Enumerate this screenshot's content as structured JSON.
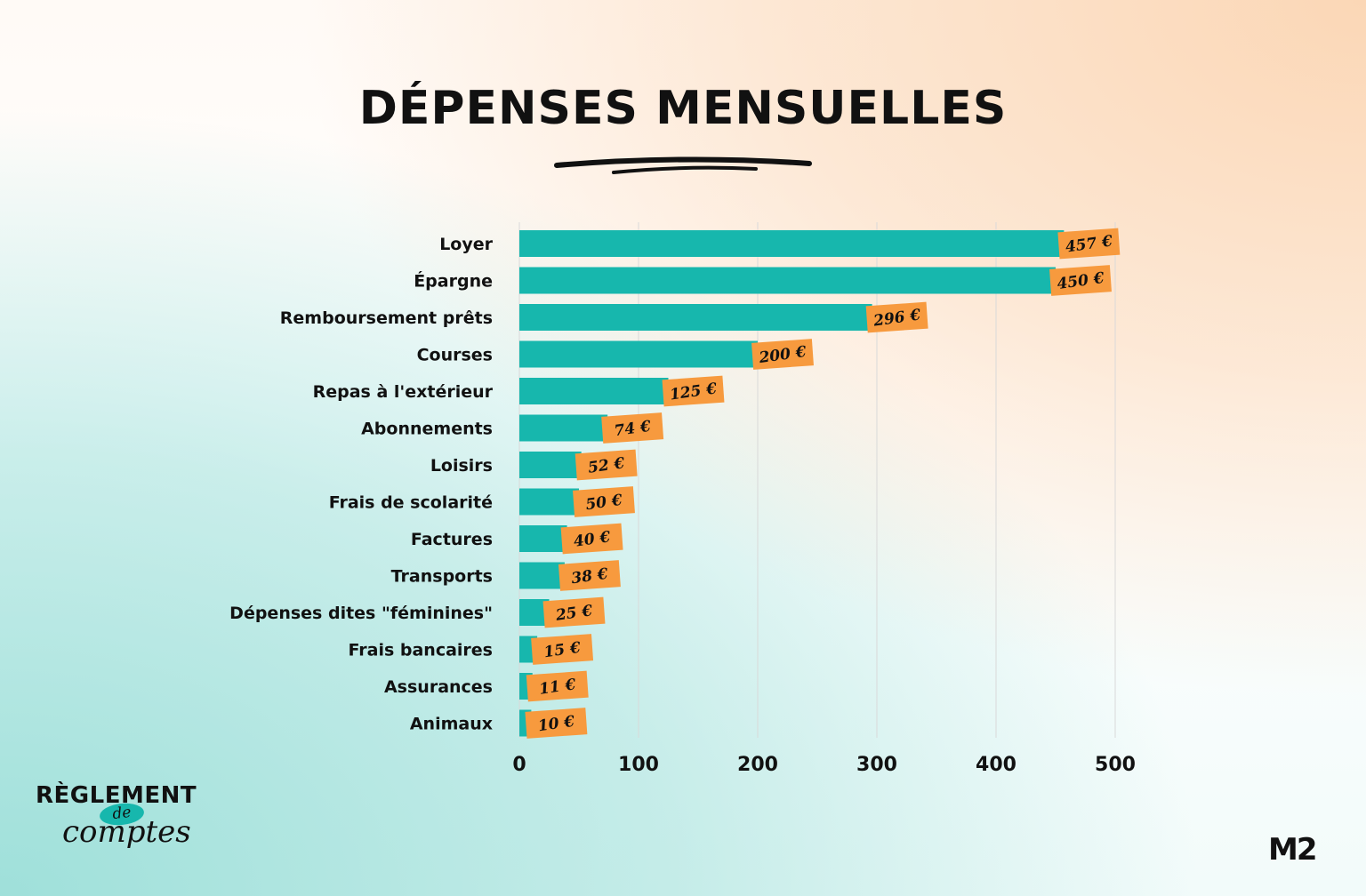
{
  "chart_data": {
    "type": "bar",
    "orientation": "horizontal",
    "title": "DÉPENSES MENSUELLES",
    "categories": [
      "Loyer",
      "Épargne",
      "Remboursement prêts",
      "Courses",
      "Repas à l'extérieur",
      "Abonnements",
      "Loisirs",
      "Frais de scolarité",
      "Factures",
      "Transports",
      "Dépenses dites \"féminines\"",
      "Frais bancaires",
      "Assurances",
      "Animaux"
    ],
    "values": [
      457,
      450,
      296,
      200,
      125,
      74,
      52,
      50,
      40,
      38,
      25,
      15,
      11,
      10
    ],
    "value_labels": [
      "457 €",
      "450 €",
      "296 €",
      "200 €",
      "125 €",
      "74 €",
      "52 €",
      "50 €",
      "40 €",
      "38 €",
      "25 €",
      "15 €",
      "11 €",
      "10 €"
    ],
    "xlim": [
      0,
      500
    ],
    "xticks": [
      0,
      100,
      200,
      300,
      400,
      500
    ],
    "xlabel": "",
    "ylabel": "",
    "grid": true,
    "colors": {
      "bar": "#17b7ad",
      "label_tag": "#f79a3e",
      "grid": "#d9d9d9",
      "text": "#111111"
    }
  },
  "branding": {
    "left_logo": {
      "line1": "RÈGLEMENT",
      "middle": "de",
      "line2": "comptes"
    },
    "right_logo": "M2"
  }
}
